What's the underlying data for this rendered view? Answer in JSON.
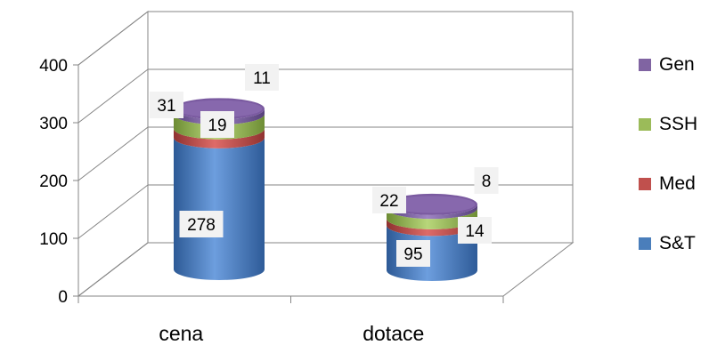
{
  "chart_data": {
    "type": "bar",
    "stacked": true,
    "style": "3d-cylinder",
    "categories": [
      "cena",
      "dotace"
    ],
    "series": [
      {
        "name": "S&T",
        "values": [
          278,
          95
        ],
        "color": "#4a7ebb"
      },
      {
        "name": "Med",
        "values": [
          19,
          14
        ],
        "color": "#c0504d"
      },
      {
        "name": "SSH",
        "values": [
          31,
          22
        ],
        "color": "#9bbb59"
      },
      {
        "name": "Gen",
        "values": [
          11,
          8
        ],
        "color": "#8064a2"
      }
    ],
    "ylim": [
      0,
      400
    ],
    "yticks": [
      0,
      100,
      200,
      300,
      400
    ],
    "grid": true,
    "legend_position": "right",
    "legend_order": [
      "Gen",
      "SSH",
      "Med",
      "S&T"
    ],
    "title": "",
    "xlabel": "",
    "ylabel": ""
  }
}
